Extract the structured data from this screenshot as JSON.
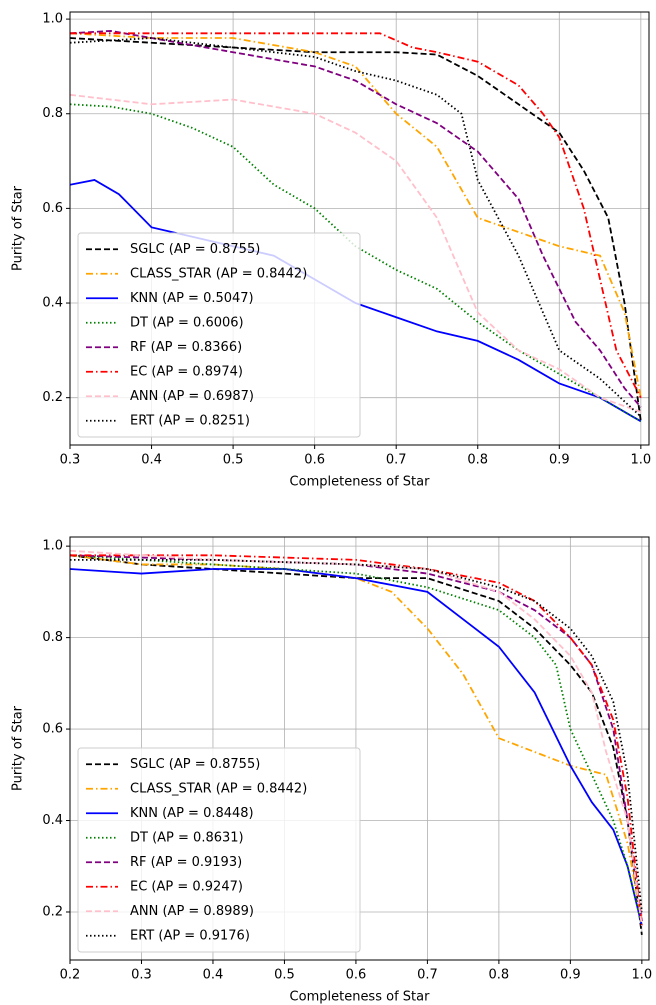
{
  "chart_data": [
    {
      "type": "line",
      "x_label": "Completeness of Star",
      "y_label": "Purity of Star",
      "xlim": [
        0.3,
        1.01
      ],
      "ylim": [
        0.1,
        1.015
      ],
      "xticks": [
        0.3,
        0.4,
        0.5,
        0.6,
        0.7,
        0.8,
        0.9,
        {
          "value": 1,
          "label": "1.0"
        }
      ],
      "yticks": [
        0.2,
        0.4,
        0.6,
        0.8,
        {
          "value": 1,
          "label": "1.0"
        }
      ],
      "grid": true,
      "legend": "lower left",
      "series": [
        {
          "name": "SGLC (AP = 0.8755)",
          "color": "#000000",
          "linestyle": "dashed",
          "x": [
            0.3,
            0.4,
            0.5,
            0.6,
            0.7,
            0.75,
            0.8,
            0.85,
            0.9,
            0.93,
            0.96,
            0.98,
            1.0
          ],
          "values": [
            0.96,
            0.95,
            0.94,
            0.93,
            0.93,
            0.925,
            0.88,
            0.82,
            0.76,
            0.68,
            0.58,
            0.4,
            0.15
          ]
        },
        {
          "name": "CLASS_STAR (AP = 0.8442)",
          "color": "#ffa500",
          "linestyle": "dashdot",
          "x": [
            0.3,
            0.4,
            0.5,
            0.6,
            0.65,
            0.7,
            0.75,
            0.8,
            0.85,
            0.9,
            0.95,
            0.98,
            1.0
          ],
          "values": [
            0.97,
            0.96,
            0.96,
            0.93,
            0.9,
            0.8,
            0.73,
            0.58,
            0.55,
            0.52,
            0.5,
            0.38,
            0.2
          ]
        },
        {
          "name": "KNN (AP = 0.5047)",
          "color": "#0000ff",
          "linestyle": "solid",
          "x": [
            0.3,
            0.33,
            0.36,
            0.4,
            0.45,
            0.5,
            0.55,
            0.6,
            0.65,
            0.7,
            0.75,
            0.8,
            0.85,
            0.9,
            0.95,
            1.0
          ],
          "values": [
            0.65,
            0.66,
            0.63,
            0.56,
            0.54,
            0.52,
            0.5,
            0.45,
            0.4,
            0.37,
            0.34,
            0.32,
            0.28,
            0.23,
            0.2,
            0.15
          ]
        },
        {
          "name": "DT (AP = 0.6006)",
          "color": "#008000",
          "linestyle": "dotted",
          "x": [
            0.3,
            0.35,
            0.4,
            0.45,
            0.5,
            0.55,
            0.6,
            0.65,
            0.7,
            0.75,
            0.8,
            0.85,
            0.9,
            0.95,
            1.0
          ],
          "values": [
            0.82,
            0.815,
            0.8,
            0.77,
            0.73,
            0.65,
            0.6,
            0.52,
            0.47,
            0.43,
            0.36,
            0.3,
            0.25,
            0.2,
            0.15
          ]
        },
        {
          "name": "RF (AP = 0.8366)",
          "color": "#800080",
          "linestyle": "dashed",
          "x": [
            0.3,
            0.35,
            0.4,
            0.5,
            0.6,
            0.65,
            0.7,
            0.75,
            0.8,
            0.85,
            0.88,
            0.92,
            0.95,
            0.98,
            1.0
          ],
          "values": [
            0.97,
            0.975,
            0.96,
            0.93,
            0.9,
            0.87,
            0.82,
            0.78,
            0.72,
            0.62,
            0.5,
            0.36,
            0.3,
            0.22,
            0.18
          ]
        },
        {
          "name": "EC (AP = 0.8974)",
          "color": "#ff0000",
          "linestyle": "dashdot",
          "x": [
            0.3,
            0.5,
            0.68,
            0.72,
            0.75,
            0.8,
            0.85,
            0.88,
            0.9,
            0.93,
            0.95,
            0.97,
            1.0
          ],
          "values": [
            0.97,
            0.97,
            0.97,
            0.94,
            0.93,
            0.91,
            0.86,
            0.8,
            0.75,
            0.6,
            0.45,
            0.3,
            0.2
          ]
        },
        {
          "name": "ANN (AP = 0.6987)",
          "color": "#ffc0cb",
          "linestyle": "dashed",
          "x": [
            0.3,
            0.35,
            0.4,
            0.5,
            0.6,
            0.65,
            0.7,
            0.75,
            0.78,
            0.8,
            0.85,
            0.9,
            0.95,
            1.0
          ],
          "values": [
            0.84,
            0.83,
            0.82,
            0.83,
            0.8,
            0.76,
            0.7,
            0.58,
            0.46,
            0.38,
            0.3,
            0.26,
            0.2,
            0.17
          ]
        },
        {
          "name": "ERT (AP = 0.8251)",
          "color": "#000000",
          "linestyle": "dotted",
          "x": [
            0.3,
            0.4,
            0.5,
            0.6,
            0.65,
            0.7,
            0.75,
            0.78,
            0.8,
            0.85,
            0.88,
            0.9,
            0.95,
            1.0
          ],
          "values": [
            0.95,
            0.96,
            0.94,
            0.92,
            0.89,
            0.87,
            0.84,
            0.8,
            0.66,
            0.5,
            0.38,
            0.3,
            0.24,
            0.16
          ]
        }
      ]
    },
    {
      "type": "line",
      "x_label": "Completeness of Star",
      "y_label": "Purity of Star",
      "xlim": [
        0.2,
        1.01
      ],
      "ylim": [
        0.095,
        1.02
      ],
      "xticks": [
        0.2,
        0.3,
        0.4,
        0.5,
        0.6,
        0.7,
        0.8,
        0.9,
        {
          "value": 1,
          "label": "1.0"
        }
      ],
      "yticks": [
        0.2,
        0.4,
        0.6,
        0.8,
        {
          "value": 1,
          "label": "1.0"
        }
      ],
      "grid": true,
      "legend": "lower left",
      "series": [
        {
          "name": "SGLC (AP = 0.8755)",
          "color": "#000000",
          "linestyle": "dashed",
          "x": [
            0.2,
            0.3,
            0.4,
            0.5,
            0.6,
            0.7,
            0.8,
            0.85,
            0.9,
            0.93,
            0.96,
            0.98,
            1.0
          ],
          "values": [
            0.98,
            0.96,
            0.95,
            0.94,
            0.93,
            0.93,
            0.88,
            0.82,
            0.74,
            0.68,
            0.56,
            0.4,
            0.15
          ]
        },
        {
          "name": "CLASS_STAR (AP = 0.8442)",
          "color": "#ffa500",
          "linestyle": "dashdot",
          "x": [
            0.2,
            0.3,
            0.4,
            0.5,
            0.6,
            0.65,
            0.7,
            0.75,
            0.8,
            0.85,
            0.9,
            0.95,
            0.98,
            1.0
          ],
          "values": [
            0.98,
            0.96,
            0.96,
            0.95,
            0.93,
            0.9,
            0.82,
            0.72,
            0.58,
            0.55,
            0.52,
            0.5,
            0.35,
            0.18
          ]
        },
        {
          "name": "KNN (AP = 0.8448)",
          "color": "#0000ff",
          "linestyle": "solid",
          "x": [
            0.2,
            0.3,
            0.4,
            0.5,
            0.6,
            0.7,
            0.75,
            0.8,
            0.85,
            0.9,
            0.93,
            0.96,
            0.98,
            1.0
          ],
          "values": [
            0.95,
            0.94,
            0.95,
            0.95,
            0.93,
            0.9,
            0.84,
            0.78,
            0.68,
            0.52,
            0.44,
            0.38,
            0.3,
            0.17
          ]
        },
        {
          "name": "DT (AP = 0.8631)",
          "color": "#008000",
          "linestyle": "dotted",
          "x": [
            0.2,
            0.4,
            0.6,
            0.7,
            0.8,
            0.85,
            0.88,
            0.9,
            0.93,
            0.96,
            0.98,
            1.0
          ],
          "values": [
            0.98,
            0.96,
            0.94,
            0.91,
            0.86,
            0.8,
            0.74,
            0.6,
            0.5,
            0.4,
            0.3,
            0.17
          ]
        },
        {
          "name": "RF (AP = 0.9193)",
          "color": "#800080",
          "linestyle": "dashed",
          "x": [
            0.2,
            0.4,
            0.6,
            0.7,
            0.8,
            0.85,
            0.9,
            0.93,
            0.96,
            0.98,
            1.0
          ],
          "values": [
            0.98,
            0.97,
            0.96,
            0.94,
            0.9,
            0.86,
            0.8,
            0.74,
            0.6,
            0.4,
            0.18
          ]
        },
        {
          "name": "EC (AP = 0.9247)",
          "color": "#ff0000",
          "linestyle": "dashdot",
          "x": [
            0.2,
            0.4,
            0.6,
            0.7,
            0.8,
            0.85,
            0.9,
            0.93,
            0.96,
            0.98,
            1.0
          ],
          "values": [
            0.98,
            0.98,
            0.97,
            0.95,
            0.92,
            0.88,
            0.8,
            0.74,
            0.62,
            0.45,
            0.17
          ]
        },
        {
          "name": "ANN (AP = 0.8989)",
          "color": "#ffc0cb",
          "linestyle": "dashed",
          "x": [
            0.2,
            0.4,
            0.6,
            0.7,
            0.8,
            0.85,
            0.9,
            0.93,
            0.95,
            0.98,
            1.0
          ],
          "values": [
            0.99,
            0.97,
            0.96,
            0.95,
            0.9,
            0.84,
            0.76,
            0.68,
            0.55,
            0.4,
            0.17
          ]
        },
        {
          "name": "ERT (AP = 0.9176)",
          "color": "#000000",
          "linestyle": "dotted",
          "x": [
            0.2,
            0.4,
            0.6,
            0.7,
            0.8,
            0.85,
            0.9,
            0.93,
            0.96,
            0.98,
            1.0
          ],
          "values": [
            0.97,
            0.97,
            0.96,
            0.95,
            0.91,
            0.88,
            0.82,
            0.76,
            0.66,
            0.5,
            0.2
          ]
        }
      ]
    }
  ]
}
